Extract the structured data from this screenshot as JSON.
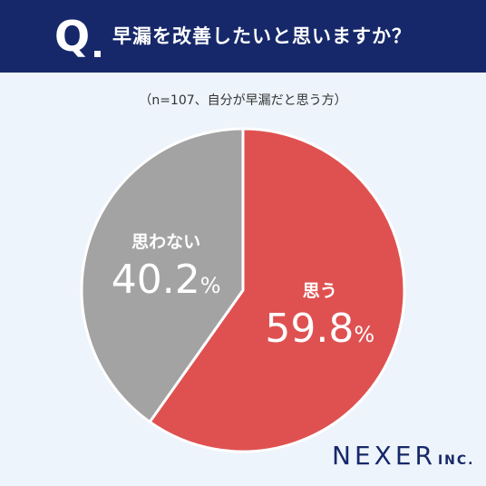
{
  "header": {
    "q_label": "Q",
    "question": "早漏を改善したいと思いますか？"
  },
  "sample_note": "（n=107、自分が早漏だと思う方）",
  "brand": {
    "name": "NEXER",
    "suffix": "INC."
  },
  "colors": {
    "header_bg": "#16286a",
    "yes": "#df5151",
    "no": "#a3a3a3",
    "background": "#eef4fb"
  },
  "chart_data": {
    "type": "pie",
    "title": "早漏を改善したいと思いますか？",
    "categories": [
      "思う",
      "思わない"
    ],
    "values": [
      59.8,
      40.2
    ],
    "value_labels": [
      "59.8",
      "40.2"
    ],
    "unit": "%",
    "start_angle_deg": 0,
    "direction": "clockwise",
    "colors": [
      "#df5151",
      "#a3a3a3"
    ]
  }
}
